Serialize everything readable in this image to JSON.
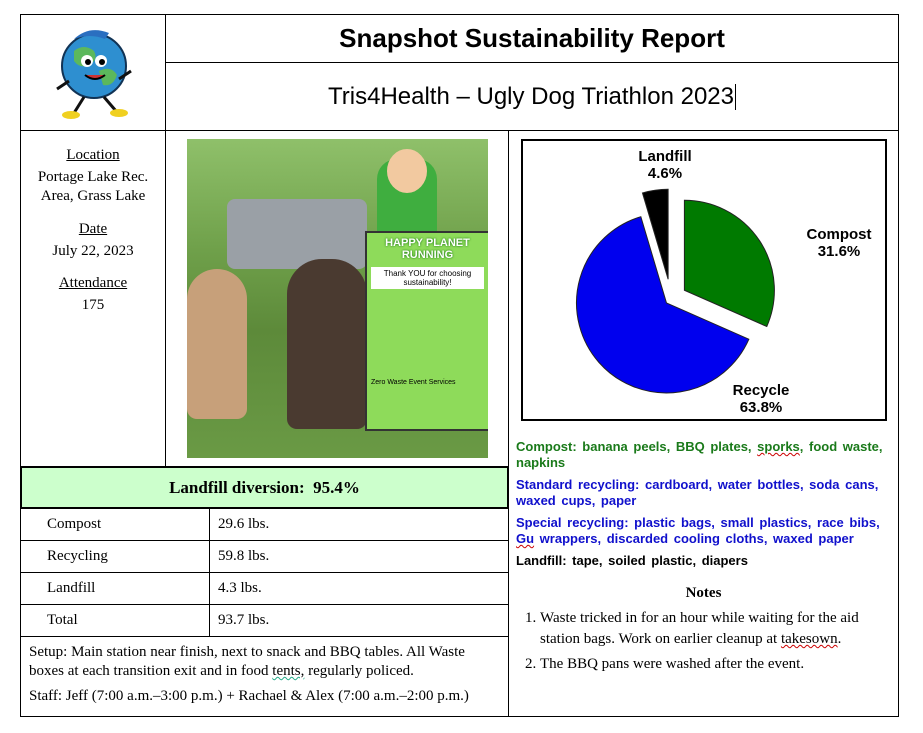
{
  "header": {
    "title": "Snapshot Sustainability Report",
    "event": "Tris4Health – Ugly Dog Triathlon 2023"
  },
  "info": {
    "location_label": "Location",
    "location": "Portage Lake Rec. Area, Grass Lake",
    "date_label": "Date",
    "date": "July 22, 2023",
    "attendance_label": "Attendance",
    "attendance": "175"
  },
  "photo": {
    "sign_title": "HAPPY PLANET RUNNING",
    "sign_text": "Thank YOU for choosing sustainability!",
    "sign_footer": "Zero Waste Event Services"
  },
  "diversion": {
    "label": "Landfill diversion:",
    "value": "95.4%"
  },
  "weights": [
    {
      "name": "Compost",
      "value": "29.6 lbs."
    },
    {
      "name": "Recycling",
      "value": "59.8 lbs."
    },
    {
      "name": "Landfill",
      "value": "4.3 lbs."
    },
    {
      "name": "Total",
      "value": "93.7 lbs."
    }
  ],
  "setup": {
    "pre": "Setup: Main station near finish, next to snack and BBQ tables. All Waste boxes at each transition exit and in food ",
    "tents": "tents,",
    "post": " regularly policed.",
    "staff": "Staff: Jeff (7:00 a.m.–3:00 p.m.) + Rachael & Alex (7:00 a.m.–2:00 p.m.)"
  },
  "chart_data": {
    "type": "pie",
    "exploded": true,
    "slices": [
      {
        "label": "Compost",
        "value": 31.6,
        "display": "31.6%",
        "color": "#007a00"
      },
      {
        "label": "Recycle",
        "value": 63.8,
        "display": "63.8%",
        "color": "#0000ee"
      },
      {
        "label": "Landfill",
        "value": 4.6,
        "display": "4.6%",
        "color": "#000000"
      }
    ]
  },
  "categories": {
    "compost": {
      "a": "Compost: banana peels, BBQ plates, ",
      "b": "sporks",
      "c": ", food waste, napkins",
      "color": "#1a7a1a"
    },
    "standard": {
      "text": "Standard recycling: cardboard, water bottles, soda cans, waxed cups, paper",
      "color": "#1010cc"
    },
    "special": {
      "a": "Special recycling: plastic bags, small plastics, race bibs, ",
      "b": "Gu",
      "c": " wrappers, discarded cooling cloths, waxed paper",
      "color": "#1010cc"
    },
    "landfill": {
      "text": "Landfill: tape, soiled plastic, diapers",
      "color": "#000000"
    }
  },
  "notes": {
    "title": "Notes",
    "items": [
      {
        "a": "Waste tricked in for an hour while waiting for the aid station bags. Work on earlier cleanup at ",
        "b": "takesown",
        "c": "."
      },
      {
        "a": "The BBQ pans were washed after the event.",
        "b": "",
        "c": ""
      }
    ]
  }
}
